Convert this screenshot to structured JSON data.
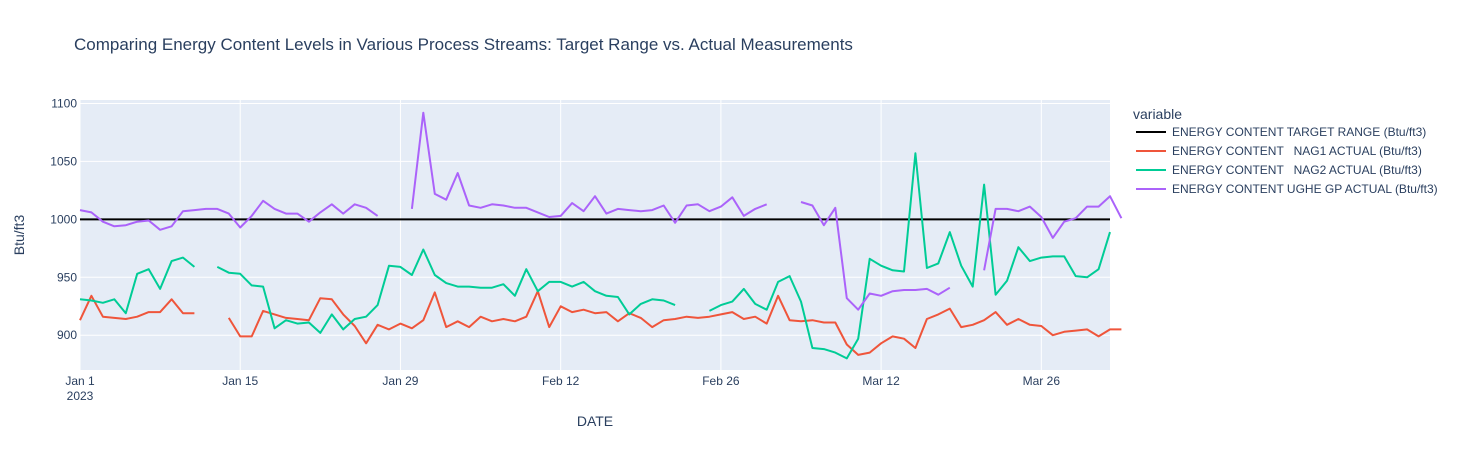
{
  "chart_data": {
    "type": "line",
    "title": "Comparing Energy Content Levels in Various Process Streams: Target Range vs. Actual Measurements",
    "xlabel": "DATE",
    "ylabel": "Btu/ft3",
    "x_start": "2023-01-01",
    "x_tick_labels": [
      "Jan 1",
      "Jan 15",
      "Jan 29",
      "Feb 12",
      "Feb 26",
      "Mar 12",
      "Mar 26"
    ],
    "x_year_label": "2023",
    "xlim": [
      "2023-01-01",
      "2023-04-01"
    ],
    "ylim": [
      870,
      1103
    ],
    "y_ticks": [
      900,
      950,
      1000,
      1050,
      1100
    ],
    "grid": true,
    "legend_title": "variable",
    "legend_position": "right",
    "series": [
      {
        "name": "ENERGY CONTENT TARGET RANGE (Btu/ft3)",
        "color": "#000000",
        "values": [
          1000,
          1000,
          1000,
          1000,
          1000,
          1000,
          1000,
          1000,
          1000,
          1000,
          1000,
          1000,
          1000,
          1000,
          1000,
          1000,
          1000,
          1000,
          1000,
          1000,
          1000,
          1000,
          1000,
          1000,
          1000,
          1000,
          1000,
          1000,
          1000,
          1000,
          1000,
          1000,
          1000,
          1000,
          1000,
          1000,
          1000,
          1000,
          1000,
          1000,
          1000,
          1000,
          1000,
          1000,
          1000,
          1000,
          1000,
          1000,
          1000,
          1000,
          1000,
          1000,
          1000,
          1000,
          1000,
          1000,
          1000,
          1000,
          1000,
          1000,
          1000,
          1000,
          1000,
          1000,
          1000,
          1000,
          1000,
          1000,
          1000,
          1000,
          1000,
          1000,
          1000,
          1000,
          1000,
          1000,
          1000,
          1000,
          1000,
          1000,
          1000,
          1000,
          1000,
          1000,
          1000,
          1000,
          1000,
          1000,
          1000,
          1000,
          1000
        ]
      },
      {
        "name": "ENERGY CONTENT   NAG1 ACTUAL (Btu/ft3)",
        "color": "#ef553b",
        "values": [
          913,
          934,
          916,
          915,
          914,
          916,
          920,
          920,
          931,
          919,
          919,
          null,
          null,
          915,
          899,
          899,
          921,
          918,
          915,
          914,
          913,
          932,
          931,
          918,
          908,
          893,
          909,
          905,
          910,
          906,
          913,
          937,
          907,
          912,
          907,
          916,
          912,
          914,
          912,
          916,
          938,
          907,
          925,
          920,
          922,
          919,
          920,
          912,
          919,
          915,
          907,
          913,
          914,
          916,
          915,
          916,
          918,
          920,
          914,
          916,
          910,
          934,
          913,
          912,
          913,
          911,
          911,
          892,
          883,
          885,
          893,
          899,
          897,
          889,
          914,
          918,
          923,
          907,
          909,
          913,
          920,
          909,
          914,
          909,
          908,
          900,
          903,
          904,
          905,
          899,
          905,
          905
        ]
      },
      {
        "name": "ENERGY CONTENT   NAG2 ACTUAL (Btu/ft3)",
        "color": "#00cc96",
        "values": [
          931,
          930,
          928,
          931,
          919,
          953,
          957,
          940,
          964,
          967,
          959,
          null,
          959,
          954,
          953,
          943,
          942,
          906,
          913,
          910,
          911,
          902,
          918,
          905,
          914,
          916,
          926,
          960,
          959,
          952,
          974,
          952,
          945,
          942,
          942,
          941,
          941,
          944,
          934,
          957,
          938,
          946,
          946,
          942,
          946,
          938,
          934,
          933,
          918,
          927,
          931,
          930,
          926,
          null,
          null,
          921,
          926,
          929,
          940,
          927,
          922,
          946,
          951,
          929,
          889,
          888,
          885,
          880,
          897,
          966,
          960,
          956,
          955,
          1057,
          958,
          962,
          989,
          960,
          942,
          1030,
          935,
          947,
          976,
          964,
          967,
          968,
          968,
          951,
          950,
          957,
          989
        ]
      },
      {
        "name": "ENERGY CONTENT UGHE GP ACTUAL (Btu/ft3)",
        "color": "#ab63fa",
        "values": [
          1008,
          1006,
          998,
          994,
          995,
          998,
          999,
          991,
          994,
          1007,
          1008,
          1009,
          1009,
          1005,
          993,
          1003,
          1016,
          1009,
          1005,
          1005,
          998,
          1006,
          1013,
          1005,
          1013,
          1010,
          1003,
          null,
          null,
          1009,
          1092,
          1022,
          1017,
          1040,
          1012,
          1010,
          1013,
          1012,
          1010,
          1010,
          1006,
          1002,
          1003,
          1014,
          1007,
          1020,
          1005,
          1009,
          1008,
          1007,
          1008,
          1012,
          997,
          1012,
          1013,
          1007,
          1011,
          1019,
          1003,
          1009,
          1013,
          null,
          null,
          1015,
          1012,
          995,
          1010,
          932,
          922,
          936,
          934,
          938,
          939,
          939,
          940,
          935,
          941,
          null,
          null,
          956,
          1009,
          1009,
          1007,
          1011,
          1002,
          984,
          998,
          1001,
          1011,
          1011,
          1020,
          1001
        ]
      }
    ]
  }
}
